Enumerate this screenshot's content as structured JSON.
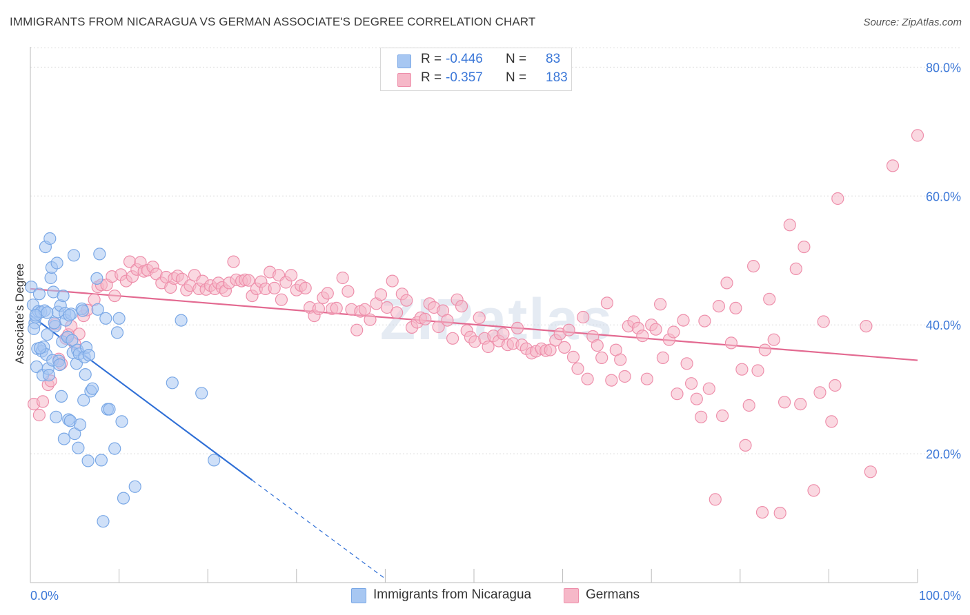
{
  "title": "IMMIGRANTS FROM NICARAGUA VS GERMAN ASSOCIATE'S DEGREE CORRELATION CHART",
  "source": "Source: ZipAtlas.com",
  "watermark": "ZIPatlas",
  "legend": {
    "series1": {
      "r_label": "R =",
      "r_value": "-0.446",
      "n_label": "N =",
      "n_value": "83"
    },
    "series2": {
      "r_label": "R =",
      "r_value": "-0.357",
      "n_label": "N =",
      "n_value": "183"
    }
  },
  "chart_data": {
    "type": "scatter",
    "title": "IMMIGRANTS FROM NICARAGUA VS GERMAN ASSOCIATE'S DEGREE CORRELATION CHART",
    "xlabel": "",
    "ylabel": "Associate's Degree",
    "xlim": [
      0,
      100
    ],
    "ylim": [
      0,
      84
    ],
    "x_tick_labels": [
      "0.0%",
      "100.0%"
    ],
    "y_ticks": [
      20,
      40,
      60,
      80
    ],
    "y_tick_labels": [
      "20.0%",
      "40.0%",
      "60.0%",
      "80.0%"
    ],
    "grid": true,
    "legend_position": "top-center",
    "series": [
      {
        "name": "Immigrants from Nicaragua",
        "color": "#a7c7f2",
        "edge_color": "#7aa8e6",
        "line_color": "#2f6fd6",
        "trend": {
          "x0": 0,
          "y0": 41.5,
          "x1": 25,
          "y1": 15.9,
          "dash_x1": 40,
          "dash_y1": 0.6
        },
        "points": [
          [
            0.1,
            45.9
          ],
          [
            0.3,
            43.1
          ],
          [
            0.5,
            40.3
          ],
          [
            0.6,
            41.2
          ],
          [
            0.4,
            39.4
          ],
          [
            0.7,
            33.5
          ],
          [
            0.8,
            36.3
          ],
          [
            0.9,
            42.1
          ],
          [
            1.0,
            44.8
          ],
          [
            1.2,
            42.0
          ],
          [
            1.3,
            35.9
          ],
          [
            1.4,
            32.2
          ],
          [
            1.5,
            36.6
          ],
          [
            1.6,
            42.2
          ],
          [
            1.7,
            52.1
          ],
          [
            1.8,
            35.4
          ],
          [
            1.9,
            41.9
          ],
          [
            2.0,
            33.2
          ],
          [
            2.2,
            53.4
          ],
          [
            2.3,
            47.3
          ],
          [
            2.4,
            48.9
          ],
          [
            2.5,
            34.5
          ],
          [
            2.6,
            45.1
          ],
          [
            2.8,
            39.8
          ],
          [
            2.9,
            25.7
          ],
          [
            3.0,
            49.6
          ],
          [
            3.1,
            42.0
          ],
          [
            3.2,
            34.4
          ],
          [
            3.4,
            43.0
          ],
          [
            3.5,
            28.9
          ],
          [
            3.6,
            37.4
          ],
          [
            3.7,
            44.5
          ],
          [
            3.8,
            22.3
          ],
          [
            3.9,
            41.8
          ],
          [
            4.0,
            40.7
          ],
          [
            4.2,
            38.1
          ],
          [
            4.3,
            25.3
          ],
          [
            4.5,
            25.1
          ],
          [
            4.6,
            41.7
          ],
          [
            4.7,
            37.6
          ],
          [
            4.8,
            35.7
          ],
          [
            4.9,
            50.8
          ],
          [
            5.0,
            23.1
          ],
          [
            5.2,
            34.0
          ],
          [
            5.3,
            36.1
          ],
          [
            5.4,
            20.9
          ],
          [
            5.5,
            35.5
          ],
          [
            5.6,
            24.5
          ],
          [
            5.8,
            42.5
          ],
          [
            6.0,
            28.3
          ],
          [
            6.1,
            35.0
          ],
          [
            6.2,
            32.3
          ],
          [
            6.3,
            36.5
          ],
          [
            6.5,
            18.9
          ],
          [
            6.6,
            35.3
          ],
          [
            6.8,
            29.7
          ],
          [
            7.0,
            30.1
          ],
          [
            7.5,
            47.2
          ],
          [
            7.6,
            42.4
          ],
          [
            7.8,
            51.0
          ],
          [
            8.0,
            19.0
          ],
          [
            8.2,
            9.5
          ],
          [
            8.5,
            41.0
          ],
          [
            8.7,
            26.9
          ],
          [
            8.9,
            26.9
          ],
          [
            9.5,
            20.8
          ],
          [
            9.8,
            38.8
          ],
          [
            10.0,
            41.0
          ],
          [
            10.3,
            25.0
          ],
          [
            10.5,
            13.1
          ],
          [
            11.8,
            14.9
          ],
          [
            16.0,
            31.0
          ],
          [
            17.0,
            40.7
          ],
          [
            19.3,
            29.4
          ],
          [
            20.7,
            19.0
          ],
          [
            2.1,
            32.2
          ],
          [
            1.1,
            36.4
          ],
          [
            0.6,
            41.5
          ],
          [
            3.3,
            33.8
          ],
          [
            5.9,
            42.2
          ],
          [
            2.7,
            40.3
          ],
          [
            1.9,
            38.5
          ],
          [
            4.4,
            41.5
          ]
        ]
      },
      {
        "name": "Germans",
        "color": "#f6b8c8",
        "edge_color": "#ee8fab",
        "line_color": "#e36a91",
        "trend": {
          "x0": 0,
          "y0": 45.6,
          "x1": 100,
          "y1": 34.5
        },
        "points": [
          [
            0.4,
            27.7
          ],
          [
            1.0,
            26.0
          ],
          [
            1.4,
            28.1
          ],
          [
            2.0,
            30.7
          ],
          [
            2.3,
            31.3
          ],
          [
            2.8,
            40.1
          ],
          [
            3.2,
            34.7
          ],
          [
            3.5,
            34.0
          ],
          [
            4.0,
            37.9
          ],
          [
            4.3,
            38.5
          ],
          [
            4.6,
            39.8
          ],
          [
            5.0,
            37.1
          ],
          [
            5.5,
            38.6
          ],
          [
            6.0,
            41.4
          ],
          [
            6.4,
            42.3
          ],
          [
            7.2,
            43.9
          ],
          [
            7.6,
            45.9
          ],
          [
            8.0,
            46.2
          ],
          [
            8.6,
            46.2
          ],
          [
            9.2,
            47.5
          ],
          [
            9.5,
            44.5
          ],
          [
            10.2,
            47.8
          ],
          [
            10.8,
            46.8
          ],
          [
            11.2,
            49.8
          ],
          [
            11.5,
            47.5
          ],
          [
            12.0,
            48.6
          ],
          [
            12.4,
            49.7
          ],
          [
            12.8,
            48.3
          ],
          [
            13.2,
            48.5
          ],
          [
            13.8,
            49.0
          ],
          [
            14.2,
            47.9
          ],
          [
            14.8,
            46.5
          ],
          [
            15.3,
            47.4
          ],
          [
            15.8,
            45.8
          ],
          [
            16.2,
            47.2
          ],
          [
            16.6,
            47.6
          ],
          [
            17.1,
            47.1
          ],
          [
            17.6,
            45.4
          ],
          [
            18.0,
            46.1
          ],
          [
            18.5,
            47.7
          ],
          [
            19.0,
            45.6
          ],
          [
            19.4,
            46.8
          ],
          [
            19.8,
            45.5
          ],
          [
            20.3,
            46.1
          ],
          [
            20.8,
            45.6
          ],
          [
            21.2,
            46.5
          ],
          [
            21.6,
            45.8
          ],
          [
            22.0,
            45.3
          ],
          [
            22.4,
            46.5
          ],
          [
            22.9,
            49.8
          ],
          [
            23.2,
            47.0
          ],
          [
            23.8,
            46.8
          ],
          [
            24.2,
            47.0
          ],
          [
            24.6,
            46.9
          ],
          [
            25.0,
            44.5
          ],
          [
            25.5,
            45.6
          ],
          [
            26.0,
            46.7
          ],
          [
            26.5,
            45.6
          ],
          [
            27.0,
            48.2
          ],
          [
            27.5,
            45.7
          ],
          [
            28.0,
            47.7
          ],
          [
            28.3,
            43.9
          ],
          [
            28.8,
            46.6
          ],
          [
            29.4,
            47.7
          ],
          [
            30.0,
            45.4
          ],
          [
            30.5,
            46.1
          ],
          [
            31.0,
            45.7
          ],
          [
            31.5,
            42.7
          ],
          [
            32.0,
            41.4
          ],
          [
            32.5,
            42.5
          ],
          [
            33.0,
            44.2
          ],
          [
            33.5,
            44.9
          ],
          [
            34.0,
            42.5
          ],
          [
            34.5,
            42.6
          ],
          [
            35.2,
            47.3
          ],
          [
            35.8,
            45.2
          ],
          [
            36.2,
            42.4
          ],
          [
            36.8,
            39.2
          ],
          [
            37.2,
            42.1
          ],
          [
            37.7,
            42.4
          ],
          [
            38.3,
            40.8
          ],
          [
            39.0,
            43.3
          ],
          [
            39.5,
            44.7
          ],
          [
            40.2,
            42.7
          ],
          [
            40.8,
            46.8
          ],
          [
            41.3,
            41.9
          ],
          [
            41.9,
            44.8
          ],
          [
            42.4,
            43.8
          ],
          [
            43.0,
            39.6
          ],
          [
            43.6,
            40.4
          ],
          [
            44.0,
            41.1
          ],
          [
            44.5,
            40.9
          ],
          [
            45.0,
            43.3
          ],
          [
            45.5,
            42.7
          ],
          [
            46.0,
            39.7
          ],
          [
            46.5,
            42.2
          ],
          [
            47.0,
            40.7
          ],
          [
            47.6,
            37.9
          ],
          [
            48.1,
            43.9
          ],
          [
            48.6,
            42.9
          ],
          [
            49.2,
            39.1
          ],
          [
            49.6,
            38.1
          ],
          [
            50.1,
            37.4
          ],
          [
            50.6,
            41.1
          ],
          [
            51.2,
            37.9
          ],
          [
            51.6,
            36.6
          ],
          [
            52.2,
            38.3
          ],
          [
            52.8,
            37.5
          ],
          [
            53.3,
            38.6
          ],
          [
            53.8,
            36.9
          ],
          [
            54.4,
            37.1
          ],
          [
            54.9,
            39.5
          ],
          [
            55.4,
            36.9
          ],
          [
            55.9,
            36.3
          ],
          [
            56.5,
            35.6
          ],
          [
            57.0,
            35.9
          ],
          [
            57.6,
            36.3
          ],
          [
            58.1,
            36.0
          ],
          [
            58.6,
            36.1
          ],
          [
            59.2,
            37.6
          ],
          [
            59.7,
            38.6
          ],
          [
            60.2,
            36.5
          ],
          [
            60.7,
            39.2
          ],
          [
            61.2,
            35.0
          ],
          [
            61.7,
            33.2
          ],
          [
            62.3,
            41.2
          ],
          [
            62.8,
            31.6
          ],
          [
            63.4,
            38.2
          ],
          [
            63.9,
            36.8
          ],
          [
            64.4,
            34.9
          ],
          [
            65.0,
            43.4
          ],
          [
            65.5,
            31.4
          ],
          [
            66.0,
            36.1
          ],
          [
            66.5,
            34.6
          ],
          [
            67.0,
            32.0
          ],
          [
            67.4,
            39.8
          ],
          [
            68.0,
            40.5
          ],
          [
            68.5,
            39.5
          ],
          [
            69.0,
            38.3
          ],
          [
            69.5,
            31.6
          ],
          [
            70.0,
            40.0
          ],
          [
            70.5,
            39.3
          ],
          [
            71.0,
            43.2
          ],
          [
            71.3,
            34.9
          ],
          [
            72.0,
            37.7
          ],
          [
            72.5,
            38.9
          ],
          [
            72.9,
            29.3
          ],
          [
            73.6,
            40.7
          ],
          [
            74.0,
            34.0
          ],
          [
            74.5,
            30.9
          ],
          [
            75.1,
            28.5
          ],
          [
            75.6,
            25.7
          ],
          [
            76.0,
            40.6
          ],
          [
            76.5,
            30.1
          ],
          [
            77.2,
            12.9
          ],
          [
            77.6,
            42.9
          ],
          [
            78.0,
            25.9
          ],
          [
            78.5,
            46.5
          ],
          [
            79.0,
            37.2
          ],
          [
            79.5,
            42.6
          ],
          [
            80.2,
            33.1
          ],
          [
            80.6,
            21.3
          ],
          [
            81.0,
            27.5
          ],
          [
            81.5,
            49.1
          ],
          [
            82.0,
            32.9
          ],
          [
            82.5,
            10.9
          ],
          [
            82.8,
            36.1
          ],
          [
            83.3,
            44.0
          ],
          [
            83.8,
            37.7
          ],
          [
            84.5,
            10.8
          ],
          [
            85.0,
            28.0
          ],
          [
            85.6,
            55.5
          ],
          [
            86.3,
            48.7
          ],
          [
            86.8,
            27.7
          ],
          [
            87.2,
            52.1
          ],
          [
            88.3,
            14.3
          ],
          [
            89.0,
            29.5
          ],
          [
            89.4,
            40.5
          ],
          [
            90.3,
            25.0
          ],
          [
            90.7,
            30.6
          ],
          [
            91.0,
            59.6
          ],
          [
            94.2,
            39.8
          ],
          [
            94.7,
            17.2
          ],
          [
            97.2,
            64.7
          ],
          [
            100.0,
            69.4
          ]
        ]
      }
    ]
  }
}
